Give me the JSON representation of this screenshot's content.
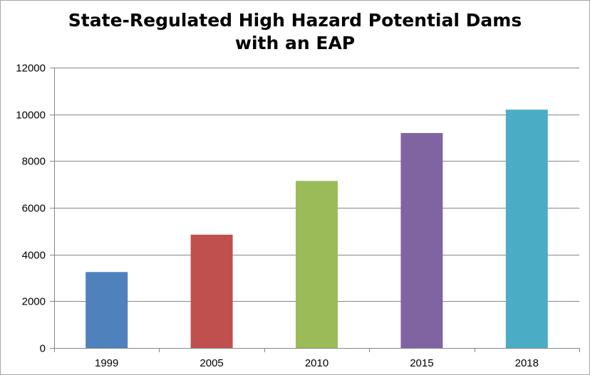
{
  "chart_data": {
    "type": "bar",
    "title_lines": [
      "State-Regulated High Hazard Potential Dams",
      "with an EAP"
    ],
    "categories": [
      "1999",
      "2005",
      "2010",
      "2015",
      "2018"
    ],
    "values": [
      3250,
      4850,
      7150,
      9200,
      10200
    ],
    "colors": [
      "#4f81bd",
      "#c0504d",
      "#9bbb59",
      "#8064a2",
      "#4bacc6"
    ],
    "ylim": [
      0,
      12000
    ],
    "yticks": [
      0,
      2000,
      4000,
      6000,
      8000,
      10000,
      12000
    ],
    "grid": true,
    "legend": "none"
  }
}
